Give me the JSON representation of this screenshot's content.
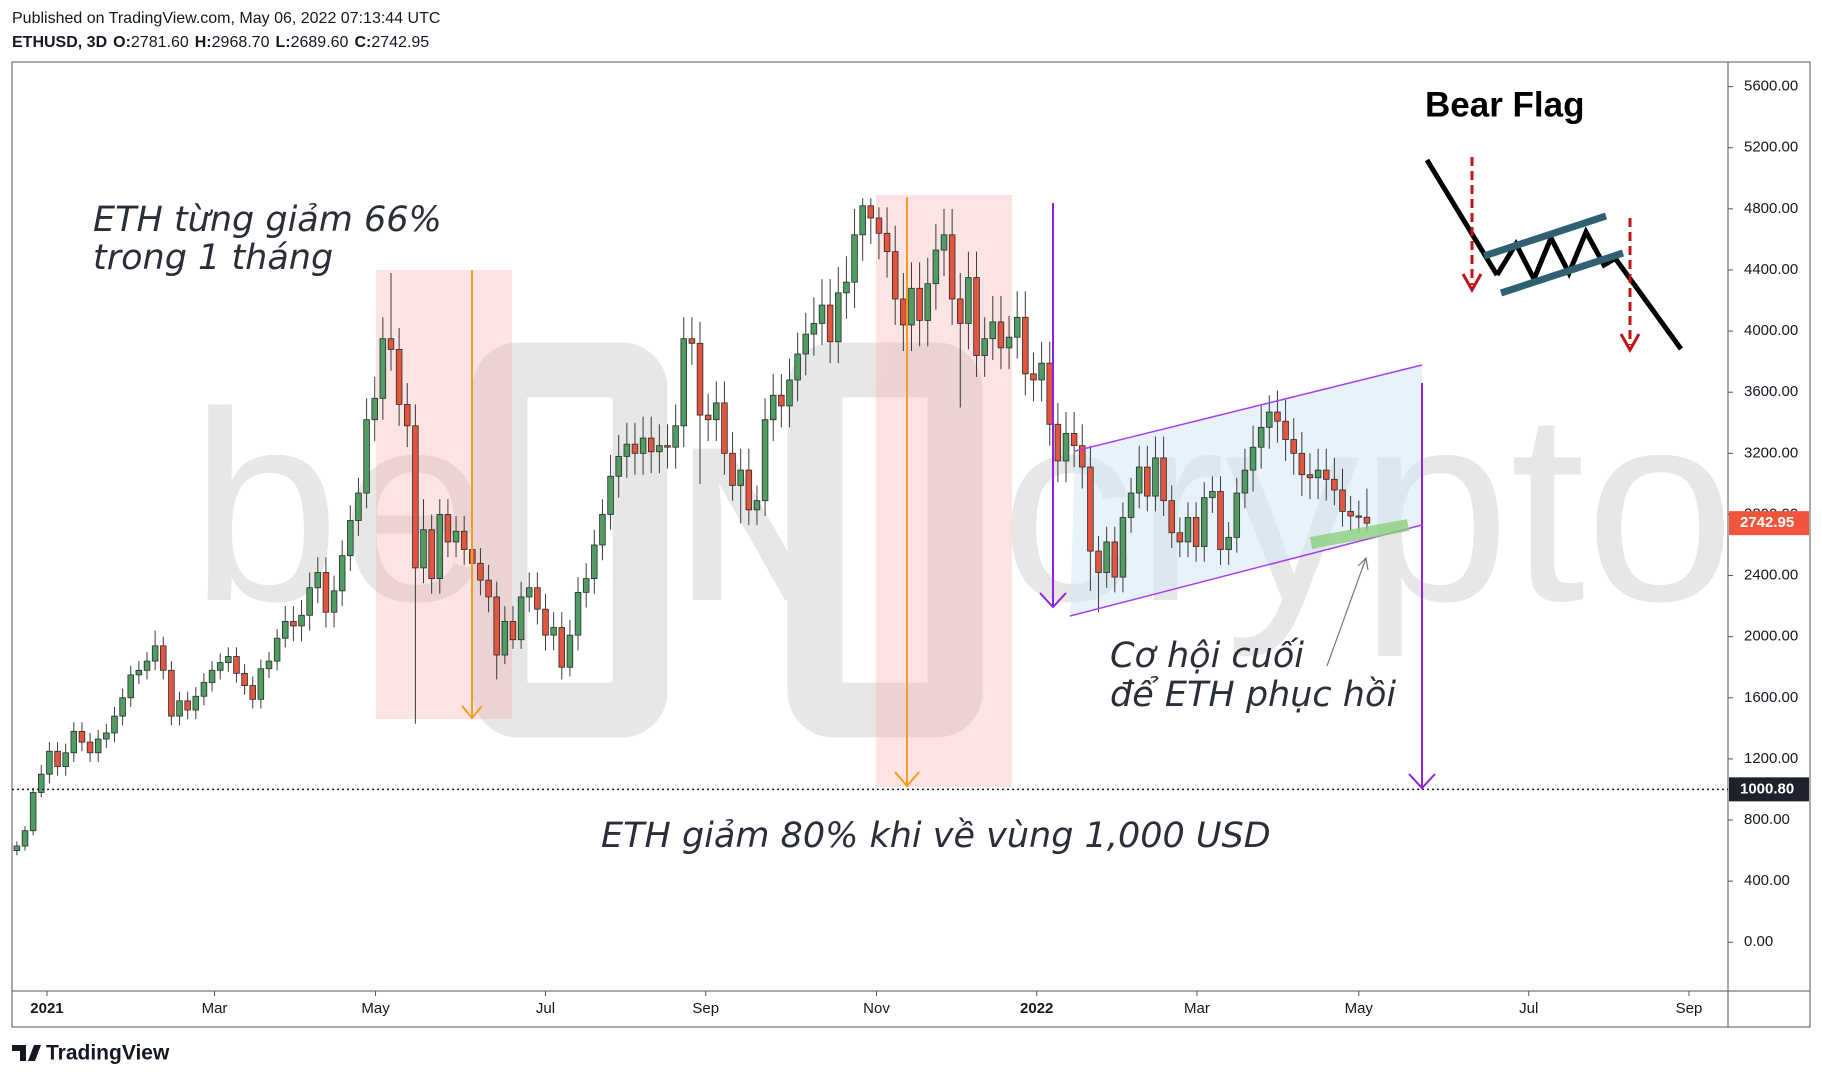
{
  "header": {
    "published": "Published on TradingView.com, May 06, 2022 07:13:44 UTC",
    "symbol": "ETHUSD, 3D",
    "quote": [
      {
        "key": "O:",
        "value": "2781.60"
      },
      {
        "key": "H:",
        "value": "2968.70"
      },
      {
        "key": "L:",
        "value": "2689.60"
      },
      {
        "key": "C:",
        "value": "2742.95"
      }
    ]
  },
  "annotations": {
    "drop_66": [
      "ETH từng giảm 66%",
      "trong 1 tháng"
    ],
    "last_chance": [
      "Cơ hội cuối",
      "để ETH phục hồi"
    ],
    "drop_80": "ETH giảm 80% khi về vùng 1,000 USD",
    "bear_flag": "Bear Flag"
  },
  "watermark": [
    "be",
    "IN",
    "crypto"
  ],
  "footer": {
    "brand": "TradingView"
  },
  "chart_data": {
    "type": "candlestick",
    "up_color": "#4f9d63",
    "down_color": "#e2553f",
    "wick_color": "#3a3a3a",
    "open": [
      600,
      630,
      730,
      980,
      1100,
      1250,
      1150,
      1240,
      1380,
      1310,
      1240,
      1330,
      1370,
      1480,
      1600,
      1750,
      1780,
      1840,
      1940,
      1780,
      1480,
      1580,
      1520,
      1610,
      1700,
      1780,
      1830,
      1870,
      1760,
      1680,
      1590,
      1790,
      1840,
      1990,
      2100,
      2070,
      2140,
      2320,
      2420,
      2160,
      2300,
      2530,
      2760,
      2940,
      3420,
      3560,
      3950,
      3880,
      3520,
      3380,
      2450,
      2700,
      2380,
      2800,
      2620,
      2690,
      2570,
      2480,
      2370,
      2260,
      1880,
      2100,
      1980,
      2260,
      2320,
      2180,
      2010,
      2060,
      1800,
      2010,
      2290,
      2380,
      2600,
      2800,
      3050,
      3180,
      3260,
      3200,
      3300,
      3210,
      3250,
      3240,
      3380,
      3950,
      3920,
      3450,
      3420,
      3530,
      3200,
      2990,
      3090,
      2830,
      2890,
      3420,
      3580,
      3510,
      3680,
      3850,
      3980,
      4050,
      4170,
      3930,
      4250,
      4320,
      4630,
      4820,
      4740,
      4640,
      4520,
      4210,
      4040,
      4280,
      4070,
      4310,
      4530,
      4630,
      4210,
      4050,
      4350,
      3840,
      3950,
      4060,
      3890,
      3960,
      4090,
      3720,
      3680,
      3790,
      3390,
      3150,
      3330,
      3250,
      3110,
      2560,
      2420,
      2620,
      2390,
      2780,
      2940,
      3110,
      2920,
      3170,
      2890,
      2680,
      2620,
      2780,
      2590,
      2910,
      2950,
      2570,
      2650,
      2940,
      3090,
      3240,
      3370,
      3470,
      3410,
      3290,
      3200,
      3060,
      3040,
      3090,
      3030,
      2960,
      2820,
      2790,
      2781.6
    ],
    "high": [
      660,
      760,
      1010,
      1160,
      1310,
      1310,
      1300,
      1440,
      1440,
      1370,
      1390,
      1430,
      1540,
      1660,
      1810,
      1840,
      1900,
      2040,
      2000,
      1840,
      1640,
      1640,
      1670,
      1760,
      1840,
      1890,
      1930,
      1930,
      1820,
      1740,
      1850,
      1900,
      2050,
      2200,
      2200,
      2240,
      2420,
      2520,
      2520,
      2400,
      2630,
      2860,
      3040,
      3560,
      3700,
      4090,
      4380,
      4020,
      3660,
      3520,
      2900,
      2800,
      2900,
      2900,
      2790,
      2790,
      2670,
      2580,
      2470,
      2360,
      2200,
      2200,
      2360,
      2420,
      2420,
      2280,
      2160,
      2160,
      2110,
      2390,
      2480,
      2700,
      2900,
      3190,
      3320,
      3400,
      3400,
      3440,
      3440,
      3390,
      3390,
      3520,
      4090,
      4090,
      4060,
      3590,
      3670,
      3670,
      3340,
      3230,
      3230,
      2990,
      3560,
      3720,
      3720,
      3820,
      3990,
      4120,
      4220,
      4340,
      4340,
      4420,
      4490,
      4800,
      4870,
      4870,
      4810,
      4810,
      4690,
      4380,
      4450,
      4450,
      4480,
      4700,
      4800,
      4800,
      4380,
      4520,
      4520,
      4090,
      4230,
      4230,
      4100,
      4260,
      4260,
      3860,
      3930,
      3930,
      3530,
      3470,
      3470,
      3390,
      3250,
      2660,
      2720,
      2720,
      2880,
      3040,
      3250,
      3250,
      3310,
      3310,
      2990,
      2780,
      2880,
      2880,
      3010,
      3050,
      3050,
      2750,
      3040,
      3230,
      3380,
      3510,
      3580,
      3610,
      3550,
      3430,
      3340,
      3200,
      3230,
      3230,
      3170,
      3100,
      2920,
      2890,
      2968.7
    ],
    "low": [
      570,
      600,
      700,
      950,
      1040,
      1090,
      1090,
      1180,
      1250,
      1180,
      1180,
      1270,
      1310,
      1420,
      1540,
      1690,
      1720,
      1780,
      1720,
      1420,
      1420,
      1460,
      1460,
      1550,
      1640,
      1720,
      1770,
      1700,
      1620,
      1530,
      1530,
      1730,
      1780,
      1930,
      1970,
      1970,
      2040,
      2220,
      2060,
      2060,
      2200,
      2430,
      2660,
      2840,
      3280,
      3420,
      3740,
      3380,
      3240,
      1430,
      2350,
      2280,
      2280,
      2520,
      2520,
      2470,
      2380,
      2270,
      2160,
      1720,
      1820,
      1920,
      1920,
      2160,
      2080,
      1910,
      1910,
      1720,
      1740,
      1910,
      2190,
      2280,
      2500,
      2700,
      2910,
      3040,
      3060,
      3060,
      3070,
      3070,
      3100,
      3100,
      3240,
      3780,
      3000,
      3280,
      3280,
      3060,
      2890,
      2740,
      2730,
      2730,
      2790,
      3280,
      3370,
      3370,
      3540,
      3710,
      3840,
      3910,
      3790,
      3790,
      4080,
      4150,
      4460,
      4570,
      4470,
      4350,
      4040,
      3870,
      3870,
      3900,
      3900,
      4140,
      4360,
      4040,
      3500,
      3880,
      3700,
      3700,
      3810,
      3750,
      3750,
      3820,
      3580,
      3540,
      3540,
      3250,
      3010,
      3010,
      3110,
      2970,
      2300,
      2160,
      2320,
      2290,
      2290,
      2680,
      2840,
      2820,
      2820,
      2790,
      2580,
      2520,
      2520,
      2490,
      2490,
      2810,
      2470,
      2470,
      2550,
      2840,
      2950,
      3100,
      3230,
      3270,
      3150,
      3060,
      2920,
      2900,
      2900,
      2890,
      2860,
      2720,
      2690,
      2680,
      2689.6
    ],
    "close": [
      630,
      730,
      980,
      1100,
      1250,
      1150,
      1240,
      1380,
      1310,
      1240,
      1330,
      1370,
      1480,
      1600,
      1750,
      1780,
      1840,
      1940,
      1780,
      1480,
      1580,
      1520,
      1610,
      1700,
      1780,
      1830,
      1870,
      1760,
      1680,
      1590,
      1790,
      1840,
      1990,
      2100,
      2070,
      2140,
      2320,
      2420,
      2160,
      2300,
      2530,
      2760,
      2940,
      3420,
      3560,
      3950,
      3880,
      3520,
      3380,
      2450,
      2700,
      2380,
      2800,
      2620,
      2690,
      2570,
      2480,
      2370,
      2260,
      1880,
      2100,
      1980,
      2260,
      2320,
      2180,
      2010,
      2060,
      1800,
      2010,
      2290,
      2380,
      2600,
      2800,
      3050,
      3180,
      3260,
      3200,
      3300,
      3210,
      3250,
      3240,
      3380,
      3950,
      3920,
      3450,
      3420,
      3530,
      3200,
      2990,
      3090,
      2830,
      2890,
      3420,
      3580,
      3510,
      3680,
      3850,
      3980,
      4050,
      4170,
      3930,
      4250,
      4320,
      4630,
      4820,
      4740,
      4640,
      4520,
      4210,
      4040,
      4280,
      4070,
      4310,
      4530,
      4630,
      4210,
      4050,
      4350,
      3840,
      3950,
      4060,
      3890,
      3960,
      4090,
      3720,
      3680,
      3790,
      3390,
      3150,
      3330,
      3250,
      3110,
      2560,
      2420,
      2620,
      2390,
      2780,
      2940,
      3110,
      2920,
      3170,
      2890,
      2680,
      2620,
      2780,
      2590,
      2910,
      2950,
      2570,
      2650,
      2940,
      3090,
      3240,
      3370,
      3470,
      3410,
      3290,
      3200,
      3060,
      3040,
      3090,
      3030,
      2960,
      2820,
      2790,
      2781.6,
      2742.95
    ],
    "xlim": [
      -0.6,
      210.4
    ],
    "xticks": [
      {
        "value": 3.7,
        "label": "2021"
      },
      {
        "value": 24.3,
        "label": "Mar"
      },
      {
        "value": 44.1,
        "label": "May"
      },
      {
        "value": 65,
        "label": "Jul"
      },
      {
        "value": 84.7,
        "label": "Sep"
      },
      {
        "value": 105.7,
        "label": "Nov"
      },
      {
        "value": 125.4,
        "label": "2022"
      },
      {
        "value": 145.1,
        "label": "Mar"
      },
      {
        "value": 165,
        "label": "May"
      },
      {
        "value": 185.9,
        "label": "Jul"
      },
      {
        "value": 205.6,
        "label": "Sep"
      }
    ],
    "ylim": [
      -319,
      5761
    ],
    "yticks": [
      {
        "value": 0,
        "label": "0.00"
      },
      {
        "value": 400,
        "label": "400.00"
      },
      {
        "value": 800,
        "label": "800.00"
      },
      {
        "value": 1200,
        "label": "1200.00"
      },
      {
        "value": 1600,
        "label": "1600.00"
      },
      {
        "value": 2000,
        "label": "2000.00"
      },
      {
        "value": 2400,
        "label": "2400.00"
      },
      {
        "value": 2800,
        "label": "2800.00"
      },
      {
        "value": 3200,
        "label": "3200.00"
      },
      {
        "value": 3600,
        "label": "3600.00"
      },
      {
        "value": 4000,
        "label": "4000.00"
      },
      {
        "value": 4400,
        "label": "4400.00"
      },
      {
        "value": 4800,
        "label": "4800.00"
      },
      {
        "value": 5200,
        "label": "5200.00"
      },
      {
        "value": 5600,
        "label": "5600.00"
      }
    ],
    "last_price": {
      "value": 2742.95,
      "label": "2742.95",
      "color": "#f0553b"
    },
    "level": {
      "value": 1000.8,
      "label": "1000.80",
      "color": "#1e222d"
    }
  }
}
